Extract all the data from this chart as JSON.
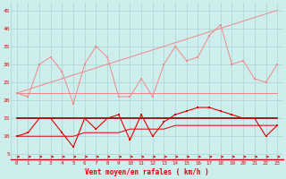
{
  "x": [
    0,
    1,
    2,
    3,
    4,
    5,
    6,
    7,
    8,
    9,
    10,
    11,
    12,
    13,
    14,
    15,
    16,
    17,
    18,
    19,
    20,
    21,
    22,
    23
  ],
  "series": {
    "light_zigzag": [
      22,
      21,
      30,
      32,
      28,
      19,
      30,
      35,
      32,
      21,
      21,
      26,
      21,
      30,
      35,
      31,
      32,
      38,
      41,
      30,
      31,
      26,
      25,
      30
    ],
    "light_flat": [
      22,
      22,
      22,
      22,
      22,
      22,
      22,
      22,
      22,
      22,
      22,
      22,
      22,
      22,
      22,
      22,
      22,
      22,
      22,
      22,
      22,
      22,
      22,
      22
    ],
    "light_rising": [
      22,
      23,
      24,
      25,
      26,
      27,
      28,
      29,
      30,
      31,
      32,
      33,
      34,
      35,
      36,
      37,
      38,
      39,
      40,
      41,
      42,
      43,
      44,
      45
    ],
    "dark_zigzag": [
      10,
      11,
      15,
      15,
      11,
      7,
      15,
      12,
      15,
      16,
      9,
      16,
      10,
      14,
      16,
      17,
      18,
      18,
      17,
      16,
      15,
      15,
      10,
      13
    ],
    "dark_flat": [
      15,
      15,
      15,
      15,
      15,
      15,
      15,
      15,
      15,
      15,
      15,
      15,
      15,
      15,
      15,
      15,
      15,
      15,
      15,
      15,
      15,
      15,
      15,
      15
    ],
    "dark_rising": [
      10,
      10,
      10,
      10,
      10,
      10,
      11,
      11,
      11,
      11,
      12,
      12,
      12,
      12,
      13,
      13,
      13,
      13,
      13,
      13,
      13,
      13,
      13,
      13
    ]
  },
  "bg_color": "#ceeeed",
  "grid_color": "#aad4d4",
  "light_color": "#f08888",
  "dark_color": "#dd0000",
  "dark_flat_color": "#880000",
  "xlabel": "Vent moyen/en rafales ( km/h )",
  "ylim": [
    3.5,
    47
  ],
  "yticks": [
    5,
    10,
    15,
    20,
    25,
    30,
    35,
    40,
    45
  ],
  "xticks": [
    0,
    1,
    2,
    3,
    4,
    5,
    6,
    7,
    8,
    9,
    10,
    11,
    12,
    13,
    14,
    15,
    16,
    17,
    18,
    19,
    20,
    21,
    22,
    23
  ]
}
